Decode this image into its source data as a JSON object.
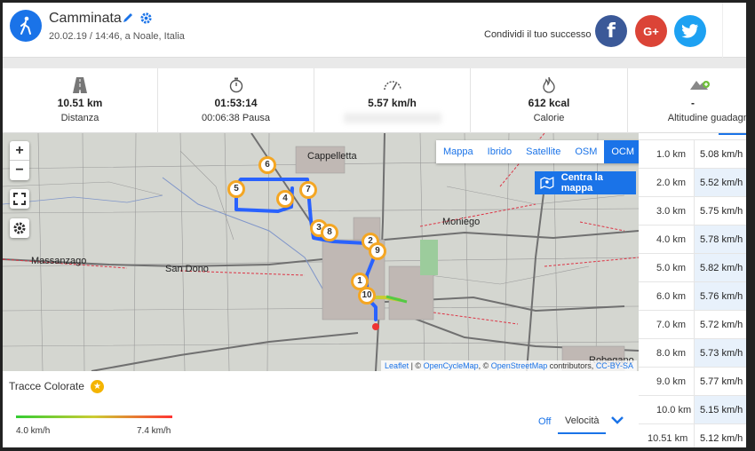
{
  "header": {
    "title": "Camminata",
    "subtitle": "20.02.19 / 14:46, a Noale, Italia",
    "share_text": "Condividi il tuo successo",
    "social": {
      "facebook": "f",
      "google": "G+",
      "twitter": "twitter"
    }
  },
  "stats": [
    {
      "icon": "road-icon",
      "value": "10.51 km",
      "label": "Distanza"
    },
    {
      "icon": "stopwatch-icon",
      "value": "01:53:14",
      "label": "00:06:38 Pausa"
    },
    {
      "icon": "speedometer-icon",
      "value": "5.57 km/h",
      "label": ""
    },
    {
      "icon": "flame-icon",
      "value": "612 kcal",
      "label": "Calorie"
    },
    {
      "icon": "elevation-icon",
      "value": "-",
      "label": "Altitudine guadagnata"
    }
  ],
  "map": {
    "layers": [
      "Mappa",
      "Ibrido",
      "Satellite",
      "OSM",
      "OCM"
    ],
    "active_layer": "OCM",
    "center_button": "Centra la mappa",
    "zoom_in": "+",
    "zoom_out": "−",
    "places": [
      "Cappelletta",
      "Moniego",
      "Massanzago",
      "San Dono",
      "Robegano"
    ],
    "markers": [
      "1",
      "2",
      "3",
      "4",
      "5",
      "6",
      "7",
      "8",
      "9",
      "10"
    ],
    "attribution": {
      "leaflet": "Leaflet",
      "sep1": " | © ",
      "ocm": "OpenCycleMap",
      "sep2": ", © ",
      "osm": "OpenStreetMap",
      "contrib": " contributors, ",
      "license": "CC-BY-SA"
    }
  },
  "splits": [
    {
      "distance": "1.0 km",
      "speed": "5.08 km/h"
    },
    {
      "distance": "2.0 km",
      "speed": "5.52 km/h"
    },
    {
      "distance": "3.0 km",
      "speed": "5.75 km/h"
    },
    {
      "distance": "4.0 km",
      "speed": "5.78 km/h"
    },
    {
      "distance": "5.0 km",
      "speed": "5.82 km/h"
    },
    {
      "distance": "6.0 km",
      "speed": "5.76 km/h"
    },
    {
      "distance": "7.0 km",
      "speed": "5.72 km/h"
    },
    {
      "distance": "8.0 km",
      "speed": "5.73 km/h"
    },
    {
      "distance": "9.0 km",
      "speed": "5.77 km/h"
    },
    {
      "distance": "10.0 km",
      "speed": "5.15 km/h"
    },
    {
      "distance": "10.51 km",
      "speed": "5.12 km/h"
    }
  ],
  "colored_tracks": {
    "title": "Tracce Colorate",
    "min": "4.0 km/h",
    "max": "7.4 km/h",
    "off": "Off",
    "metric": "Velocità"
  },
  "colors": {
    "accent": "#1a73e8",
    "marker": "#f4a623",
    "route": "#2962ff"
  }
}
